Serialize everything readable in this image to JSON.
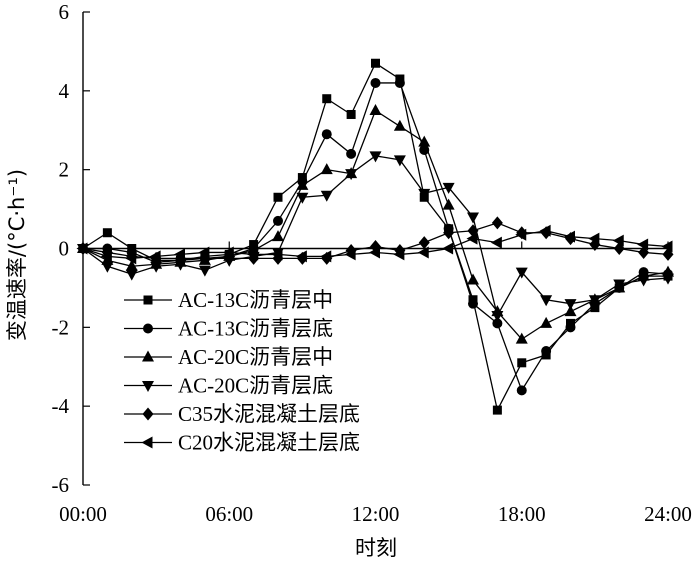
{
  "chart_data": {
    "type": "line",
    "xlabel": "时刻",
    "ylabel": "变温速率/(°C·h⁻¹)",
    "xlim": [
      0,
      24
    ],
    "ylim": [
      -6,
      6
    ],
    "xticks": [
      0,
      6,
      12,
      18,
      24
    ],
    "xtick_labels": [
      "00:00",
      "06:00",
      "12:00",
      "18:00",
      "24:00"
    ],
    "yticks": [
      -6,
      -4,
      -2,
      0,
      2,
      4,
      6
    ],
    "ytick_labels": [
      "-6",
      "-4",
      "-2",
      "0",
      "2",
      "4",
      "6"
    ],
    "grid": false,
    "legend_position": "lower-left",
    "x": [
      0,
      1,
      2,
      3,
      4,
      5,
      6,
      7,
      8,
      9,
      10,
      11,
      12,
      13,
      14,
      15,
      16,
      17,
      18,
      19,
      20,
      21,
      22,
      23,
      24
    ],
    "series": [
      {
        "name": "AC-13C沥青层中",
        "marker": "square",
        "values": [
          0,
          0.4,
          0,
          -0.3,
          -0.3,
          -0.2,
          -0.15,
          0.1,
          1.3,
          1.8,
          3.8,
          3.4,
          4.7,
          4.3,
          1.3,
          0.5,
          -1.3,
          -4.1,
          -2.9,
          -2.7,
          -1.9,
          -1.5,
          -1.0,
          -0.7,
          -0.7
        ]
      },
      {
        "name": "AC-13C沥青层底",
        "marker": "circle",
        "values": [
          0,
          0,
          -0.1,
          -0.35,
          -0.3,
          -0.25,
          -0.2,
          0,
          0.7,
          1.7,
          2.9,
          2.4,
          4.2,
          4.2,
          2.5,
          0.5,
          -1.4,
          -1.9,
          -3.6,
          -2.6,
          -2.0,
          -1.4,
          -1.0,
          -0.6,
          -0.65
        ]
      },
      {
        "name": "AC-20C沥青层中",
        "marker": "triangle-up",
        "values": [
          0,
          -0.3,
          -0.45,
          -0.4,
          -0.35,
          -0.3,
          -0.2,
          -0.05,
          0.3,
          1.6,
          2.0,
          1.9,
          3.5,
          3.1,
          2.7,
          1.1,
          -0.8,
          -1.6,
          -2.3,
          -1.9,
          -1.6,
          -1.3,
          -1.0,
          -0.7,
          -0.6
        ]
      },
      {
        "name": "AC-20C沥青层底",
        "marker": "triangle-down",
        "values": [
          0,
          -0.45,
          -0.65,
          -0.45,
          -0.4,
          -0.55,
          -0.3,
          -0.2,
          -0.1,
          1.3,
          1.35,
          1.9,
          2.35,
          2.25,
          1.4,
          1.55,
          0.8,
          -1.7,
          -0.6,
          -1.3,
          -1.4,
          -1.3,
          -0.9,
          -0.8,
          -0.75
        ]
      },
      {
        "name": "C35水泥混凝土层底",
        "marker": "diamond",
        "values": [
          0,
          -0.1,
          -0.2,
          -0.25,
          -0.25,
          -0.25,
          -0.25,
          -0.25,
          -0.25,
          -0.25,
          -0.25,
          -0.05,
          0.05,
          -0.05,
          0.15,
          0.4,
          0.45,
          0.65,
          0.4,
          0.4,
          0.25,
          0.1,
          0,
          -0.1,
          -0.15
        ]
      },
      {
        "name": "C20水泥混凝土层底",
        "marker": "triangle-left",
        "values": [
          0,
          -0.2,
          -0.25,
          -0.2,
          -0.15,
          -0.1,
          -0.1,
          -0.15,
          -0.15,
          -0.2,
          -0.2,
          -0.15,
          -0.1,
          -0.15,
          -0.1,
          0,
          0.25,
          0.15,
          0.35,
          0.45,
          0.3,
          0.25,
          0.2,
          0.1,
          0.05
        ]
      }
    ]
  }
}
